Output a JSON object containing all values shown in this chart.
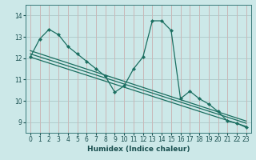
{
  "xlabel": "Humidex (Indice chaleur)",
  "xlim": [
    -0.5,
    23.5
  ],
  "ylim": [
    8.5,
    14.5
  ],
  "yticks": [
    9,
    10,
    11,
    12,
    13,
    14
  ],
  "xticks": [
    0,
    1,
    2,
    3,
    4,
    5,
    6,
    7,
    8,
    9,
    10,
    11,
    12,
    13,
    14,
    15,
    16,
    17,
    18,
    19,
    20,
    21,
    22,
    23
  ],
  "bg_color": "#cce8e8",
  "grid_major_color": "#b0cccc",
  "grid_minor_color": "#d4b8b8",
  "line_color": "#1a6e60",
  "jagged_x": [
    0,
    1,
    2,
    3,
    4,
    5,
    6,
    7,
    8,
    9,
    10,
    11,
    12,
    13,
    14,
    15,
    16,
    17,
    18,
    19,
    20,
    21,
    22,
    23
  ],
  "jagged_y": [
    12.05,
    12.9,
    13.35,
    13.1,
    12.55,
    12.2,
    11.85,
    11.5,
    11.15,
    10.4,
    10.7,
    11.5,
    12.05,
    13.75,
    13.75,
    13.3,
    10.1,
    10.45,
    10.1,
    9.85,
    9.5,
    9.05,
    8.95,
    8.75
  ],
  "trend1_x": [
    0,
    23
  ],
  "trend1_y": [
    12.35,
    9.05
  ],
  "trend2_x": [
    0,
    23
  ],
  "trend2_y": [
    12.2,
    8.95
  ],
  "trend3_x": [
    0,
    23
  ],
  "trend3_y": [
    12.05,
    8.8
  ]
}
